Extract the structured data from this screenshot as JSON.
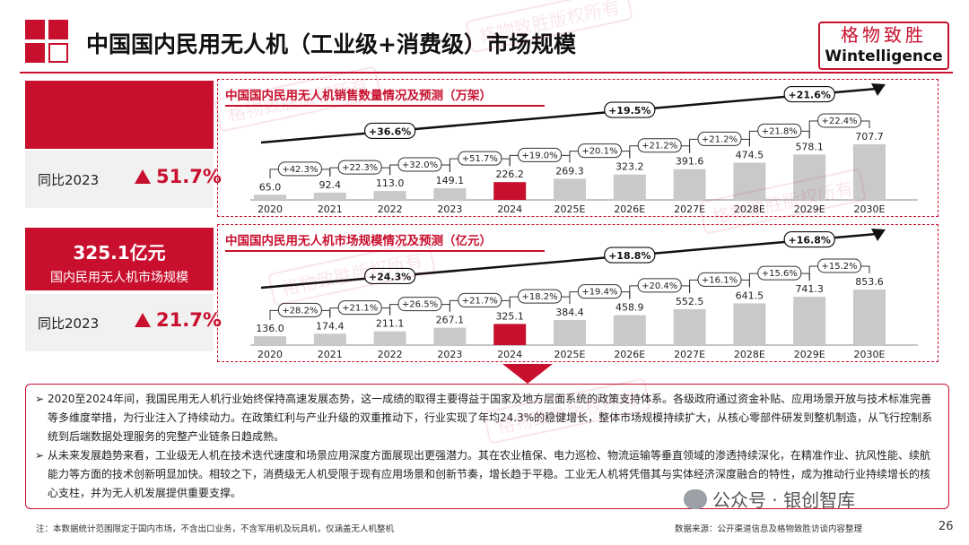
{
  "header": {
    "title": "中国国内民用无人机（工业级+消费级）市场规模",
    "brand_cn": "格物致胜",
    "brand_en": "Wintelligence"
  },
  "watermark_text": "格物致胜版权所有",
  "kpis": {
    "volume_label": "",
    "volume_yoy_label": "同比2023",
    "volume_yoy_value": "51.7%",
    "market_value": "325.1亿元",
    "market_label": "国内民用无人机市场规模",
    "market_yoy_label": "同比2023",
    "market_yoy_value": "21.7%"
  },
  "chart_data": [
    {
      "type": "bar",
      "title": "中国国内民用无人机销售数量情况及预测（万架）",
      "categories": [
        "2020",
        "2021",
        "2022",
        "2023",
        "2024",
        "2025E",
        "2026E",
        "2027E",
        "2028E",
        "2029E",
        "2030E"
      ],
      "values": [
        65.0,
        92.4,
        113.0,
        149.1,
        226.2,
        269.3,
        323.2,
        391.6,
        474.5,
        578.1,
        707.7
      ],
      "value_labels": [
        "65.0",
        "92.4",
        "113.0",
        "149.1",
        "226.2",
        "269.3",
        "323.2",
        "391.6",
        "474.5",
        "578.1",
        "707.7"
      ],
      "growth_labels": [
        "+42.3%",
        "+22.3%",
        "+32.0%",
        "+51.7%",
        "+19.0%",
        "+20.1%",
        "+21.2%",
        "+21.2%",
        "+21.8%",
        "+22.4%"
      ],
      "cagr_labels": [
        "+36.6%",
        "+19.5%",
        "+21.6%"
      ],
      "highlight_index": 4,
      "colors": {
        "bar": "#c9c9c9",
        "highlight": "#c8102e"
      }
    },
    {
      "type": "bar",
      "title": "中国国内民用无人机市场规模情况及预测（亿元）",
      "categories": [
        "2020",
        "2021",
        "2022",
        "2023",
        "2024",
        "2025E",
        "2026E",
        "2027E",
        "2028E",
        "2029E",
        "2030E"
      ],
      "values": [
        136.0,
        174.4,
        211.1,
        267.1,
        325.1,
        384.4,
        458.9,
        552.5,
        641.5,
        741.3,
        853.6
      ],
      "value_labels": [
        "136.0",
        "174.4",
        "211.1",
        "267.1",
        "325.1",
        "384.4",
        "458.9",
        "552.5",
        "641.5",
        "741.3",
        "853.6"
      ],
      "growth_labels": [
        "+28.2%",
        "+21.1%",
        "+26.5%",
        "+21.7%",
        "+18.2%",
        "+19.4%",
        "+20.4%",
        "+16.1%",
        "+15.6%",
        "+15.2%"
      ],
      "cagr_labels": [
        "+24.3%",
        "+18.8%",
        "+16.8%"
      ],
      "highlight_index": 4,
      "colors": {
        "bar": "#c9c9c9",
        "highlight": "#c8102e"
      }
    }
  ],
  "analysis": [
    "2020至2024年间，我国民用无人机行业始终保持高速发展态势，这一成绩的取得主要得益于国家及地方层面系统的政策支持体系。各级政府通过资金补贴、应用场景开放与技术标准完善等多维度举措，为行业注入了持续动力。在政策红利与产业升级的双重推动下，行业实现了年均24.3%的稳健增长，整体市场规模持续扩大，从核心零部件研发到整机制造，从飞行控制系统到后端数据处理服务的完整产业链条日趋成熟。",
    "从未来发展趋势来看，工业级无人机在技术迭代速度和场景应用深度方面展现出更强潜力。其在农业植保、电力巡检、物流运输等垂直领域的渗透持续深化，在精准作业、抗风性能、续航能力等方面的技术创新明显加快。相较之下，消费级无人机受限于现有应用场景和创新节奏，增长趋于平稳。工业无人机将凭借其与实体经济深度融合的特性，成为推动行业持续增长的核心支柱，并为无人机发展提供重要支撑。"
  ],
  "footer": {
    "note": "注：本数据统计范围限定于国内市场，不含出口业务，不含军用机及玩具机，仅涵盖无人机整机",
    "source": "数据来源：公开渠道信息及格物致胜访谈内容整理",
    "page": "26",
    "wechat": "公众号 · 银创智库"
  }
}
